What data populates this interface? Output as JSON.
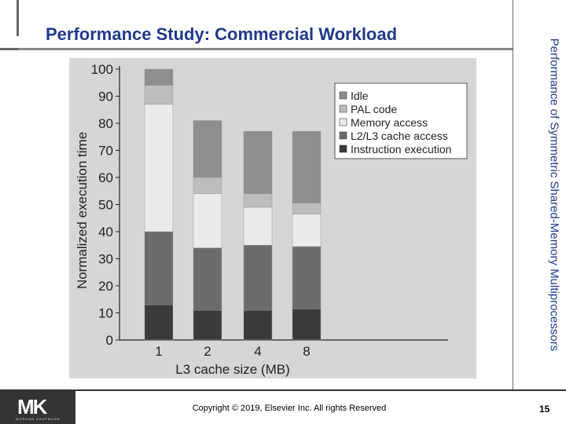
{
  "slide": {
    "title": "Performance Study:  Commercial Workload",
    "side_title": "Performance of Symmetric Shared-Memory Multiprocessors",
    "copyright": "Copyright © 2019, Elsevier Inc. All rights Reserved",
    "page_number": "15",
    "logo_text": "MK",
    "logo_subtext": "MORGAN KAUFMANN"
  },
  "chart_data": {
    "type": "bar",
    "stacked": true,
    "xlabel": "L3 cache size (MB)",
    "ylabel": "Normalized execution time",
    "ylim": [
      0,
      100
    ],
    "yticks": [
      0,
      10,
      20,
      30,
      40,
      50,
      60,
      70,
      80,
      90,
      100
    ],
    "categories": [
      "1",
      "2",
      "4",
      "8"
    ],
    "series": [
      {
        "name": "Instruction execution",
        "color": "#3a3a3a",
        "values": [
          13,
          11,
          11,
          11.5
        ]
      },
      {
        "name": "L2/L3 cache access",
        "color": "#6b6b6b",
        "values": [
          27,
          23,
          24,
          23
        ]
      },
      {
        "name": "Memory access",
        "color": "#ebebeb",
        "values": [
          47,
          20,
          14,
          12
        ]
      },
      {
        "name": "PAL code",
        "color": "#bdbdbd",
        "values": [
          7,
          6,
          5,
          4
        ]
      },
      {
        "name": "Idle",
        "color": "#8e8e8e",
        "values": [
          6,
          21,
          23,
          26.5
        ]
      }
    ],
    "legend_order": [
      "Idle",
      "PAL code",
      "Memory access",
      "L2/L3 cache access",
      "Instruction execution"
    ],
    "legend_position": "top-right",
    "background": "#d6d6d6",
    "grid": false
  }
}
